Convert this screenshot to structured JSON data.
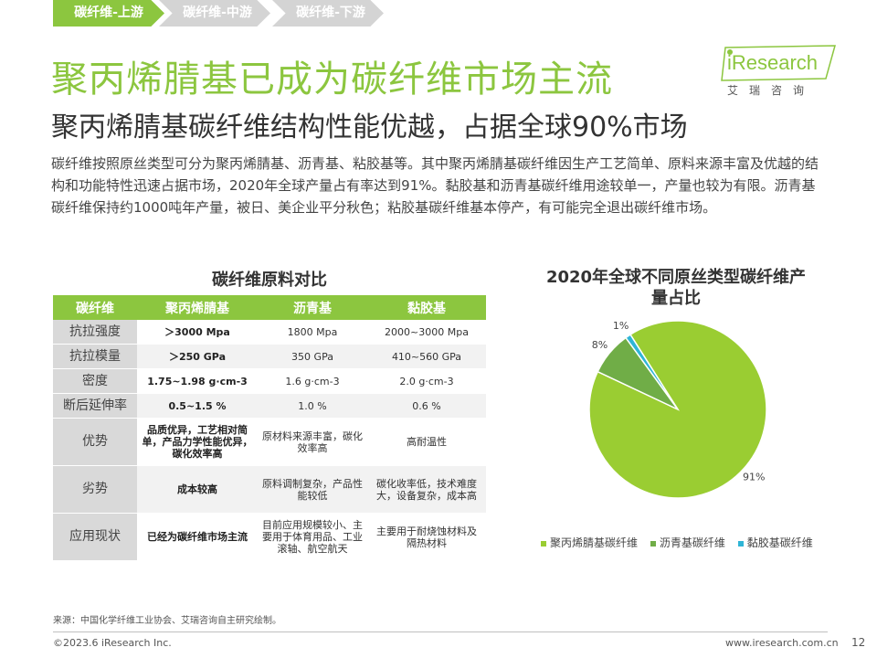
{
  "breadcrumb": [
    "碳纤维-上游",
    "碳纤维-中游",
    "碳纤维-下游"
  ],
  "colors": {
    "accent": "#8cc63f",
    "accent_dark": "#70ad47",
    "accent_teal": "#2fb5d6",
    "inactive": "#d4d4d4"
  },
  "logo": {
    "wordmark": "iResearch",
    "sub": "艾瑞咨询"
  },
  "title": "聚丙烯腈基已成为碳纤维市场主流",
  "subtitle": "聚丙烯腈基碳纤维结构性能优越，占据全球90%市场",
  "intro": "碳纤维按照原丝类型可分为聚丙烯腈基、沥青基、粘胶基等。其中聚丙烯腈基碳纤维因生产工艺简单、原料来源丰富及优越的结构和功能特性迅速占据市场，2020年全球产量占有率达到91%。黏胶基和沥青基碳纤维用途较单一，产量也较为有限。沥青基碳纤维保持约1000吨年产量，被日、美企业平分秋色；粘胶基碳纤维基本停产，有可能完全退出碳纤维市场。",
  "table": {
    "title": "碳纤维原料对比",
    "headers": [
      "碳纤维",
      "聚丙烯腈基",
      "沥青基",
      "黏胶基"
    ],
    "rows": [
      [
        "抗拉强度",
        "＞3000 Mpa",
        "1800 Mpa",
        "2000~3000 Mpa"
      ],
      [
        "抗拉模量",
        "＞250 GPa",
        "350 GPa",
        "410~560 GPa"
      ],
      [
        "密度",
        "1.75~1.98 g·cm-3",
        "1.6 g·cm-3",
        "2.0 g·cm-3"
      ],
      [
        "断后延伸率",
        "0.5~1.5 %",
        "1.0 %",
        "0.6 %"
      ],
      [
        "优势",
        "品质优异，工艺相对简单，产品力学性能优异，碳化效率高",
        "原材料来源丰富，碳化效率高",
        "高耐温性"
      ],
      [
        "劣势",
        "成本较高",
        "原料调制复杂，产品性能较低",
        "碳化收率低，技术难度大，设备复杂，成本高"
      ],
      [
        "应用现状",
        "已经为碳纤维市场主流",
        "目前应用规模较小、主要用于体育用品、工业滚轴、航空航天",
        "主要用于耐烧蚀材料及隔热材料"
      ]
    ]
  },
  "chart_data": {
    "type": "pie",
    "title": "2020年全球不同原丝类型碳纤维产量占比",
    "categories": [
      "聚丙烯腈基碳纤维",
      "沥青基碳纤维",
      "黏胶基碳纤维"
    ],
    "values": [
      91,
      8,
      1
    ],
    "labels": [
      "91%",
      "8%",
      "1%"
    ],
    "colors": [
      "#9acd32",
      "#70ad47",
      "#2fb5d6"
    ],
    "legend_position": "bottom"
  },
  "footer": {
    "source": "来源：中国化学纤维工业协会、艾瑞咨询自主研究绘制。",
    "copyright": "©2023.6 iResearch Inc.",
    "website": "www.iresearch.com.cn",
    "page": "12"
  }
}
